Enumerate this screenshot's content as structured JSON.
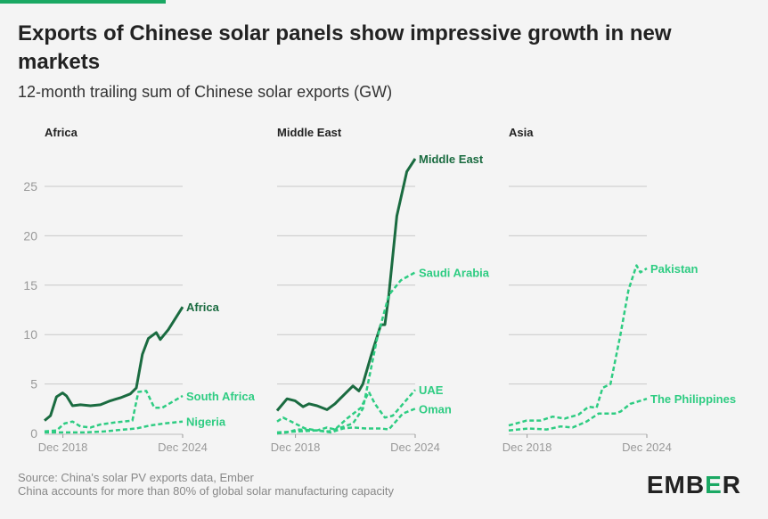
{
  "title": "Exports of Chinese solar panels show impressive growth in new markets",
  "subtitle": "12-month trailing sum of Chinese solar exports (GW)",
  "footer": {
    "source": "Source: China's solar PV exports data, Ember",
    "note": "China accounts for more than 80% of global solar manufacturing capacity"
  },
  "logo": {
    "pre": "EMB",
    "mid": "E",
    "post": "R"
  },
  "colors": {
    "dark": "#1a6b40",
    "light": "#2ecc82",
    "grid": "#c8c8c8",
    "axis": "#999999"
  },
  "chart_data": [
    {
      "type": "line",
      "title": "Africa",
      "ylim": [
        0,
        27.8
      ],
      "yticks": [
        0,
        5,
        10,
        15,
        20,
        25
      ],
      "xlim": [
        2018.0,
        2024.92
      ],
      "xticks": [
        {
          "x": 2018.92,
          "label": "Dec 2018"
        },
        {
          "x": 2024.92,
          "label": "Dec 2024"
        }
      ],
      "series": [
        {
          "name": "Africa",
          "style": "solid",
          "x": [
            2018.0,
            2018.3,
            2018.6,
            2018.9,
            2019.1,
            2019.4,
            2019.8,
            2020.3,
            2020.8,
            2021.3,
            2021.8,
            2022.3,
            2022.6,
            2022.9,
            2023.2,
            2023.6,
            2023.8,
            2024.2,
            2024.92
          ],
          "y": [
            1.3,
            1.8,
            3.7,
            4.1,
            3.8,
            2.8,
            2.9,
            2.8,
            2.9,
            3.3,
            3.6,
            4.0,
            4.6,
            8.0,
            9.6,
            10.2,
            9.5,
            10.5,
            12.8
          ]
        },
        {
          "name": "South Africa",
          "style": "dashed",
          "x": [
            2018.0,
            2018.6,
            2019.0,
            2019.4,
            2019.8,
            2020.3,
            2020.8,
            2021.5,
            2022.4,
            2022.7,
            2023.1,
            2023.5,
            2023.9,
            2024.92
          ],
          "y": [
            0.2,
            0.3,
            1.0,
            1.2,
            0.7,
            0.6,
            0.9,
            1.1,
            1.3,
            4.2,
            4.3,
            2.6,
            2.6,
            3.8
          ]
        },
        {
          "name": "Nigeria",
          "style": "dashed",
          "x": [
            2018.0,
            2019.0,
            2020.0,
            2021.0,
            2022.0,
            2022.6,
            2023.3,
            2024.0,
            2024.92
          ],
          "y": [
            0.1,
            0.1,
            0.1,
            0.2,
            0.4,
            0.5,
            0.8,
            1.0,
            1.2
          ]
        }
      ]
    },
    {
      "type": "line",
      "title": "Middle East",
      "ylim": [
        0,
        27.8
      ],
      "yticks": [
        0,
        5,
        10,
        15,
        20,
        25
      ],
      "xlim": [
        2018.0,
        2024.92
      ],
      "xticks": [
        {
          "x": 2018.92,
          "label": "Dec 2018"
        },
        {
          "x": 2024.92,
          "label": "Dec 2024"
        }
      ],
      "series": [
        {
          "name": "Middle East",
          "style": "solid",
          "x": [
            2018.0,
            2018.5,
            2018.9,
            2019.3,
            2019.6,
            2020.0,
            2020.5,
            2020.9,
            2021.3,
            2021.8,
            2022.1,
            2022.3,
            2022.7,
            2023.2,
            2023.4,
            2023.6,
            2024.0,
            2024.5,
            2024.92
          ],
          "y": [
            2.3,
            3.5,
            3.3,
            2.7,
            3.0,
            2.8,
            2.4,
            3.0,
            3.8,
            4.8,
            4.3,
            5.0,
            7.8,
            11.0,
            11.0,
            14.0,
            22.0,
            26.5,
            27.8
          ]
        },
        {
          "name": "Saudi Arabia",
          "style": "dashed",
          "x": [
            2018.0,
            2018.5,
            2019.0,
            2020.0,
            2020.6,
            2021.2,
            2021.8,
            2022.3,
            2023.0,
            2023.6,
            2024.2,
            2024.92
          ],
          "y": [
            0.0,
            0.1,
            0.4,
            0.3,
            0.2,
            0.6,
            1.0,
            2.5,
            9.5,
            14.0,
            15.5,
            16.3
          ]
        },
        {
          "name": "UAE",
          "style": "dashed",
          "x": [
            2018.0,
            2018.3,
            2018.9,
            2019.4,
            2020.0,
            2020.5,
            2020.9,
            2021.5,
            2022.2,
            2022.6,
            2022.9,
            2023.4,
            2023.8,
            2024.92
          ],
          "y": [
            1.2,
            1.6,
            1.0,
            0.5,
            0.3,
            0.6,
            0.4,
            1.5,
            2.6,
            4.2,
            3.0,
            1.6,
            1.8,
            4.4
          ]
        },
        {
          "name": "Oman",
          "style": "dashed",
          "x": [
            2018.0,
            2019.0,
            2020.0,
            2020.7,
            2021.3,
            2021.8,
            2022.5,
            2023.2,
            2023.6,
            2024.3,
            2024.92
          ],
          "y": [
            0.1,
            0.2,
            0.3,
            0.1,
            0.5,
            0.6,
            0.5,
            0.5,
            0.4,
            2.0,
            2.5
          ]
        }
      ]
    },
    {
      "type": "line",
      "title": "Asia",
      "ylim": [
        0,
        27.8
      ],
      "yticks": [
        0,
        5,
        10,
        15,
        20,
        25
      ],
      "xlim": [
        2018.0,
        2024.92
      ],
      "xticks": [
        {
          "x": 2018.92,
          "label": "Dec 2018"
        },
        {
          "x": 2024.92,
          "label": "Dec 2024"
        }
      ],
      "series": [
        {
          "name": "Pakistan",
          "style": "dashed",
          "x": [
            2018.0,
            2018.9,
            2019.6,
            2020.2,
            2020.8,
            2021.5,
            2022.0,
            2022.4,
            2022.7,
            2023.1,
            2023.6,
            2024.0,
            2024.4,
            2024.6,
            2024.92
          ],
          "y": [
            0.8,
            1.3,
            1.3,
            1.7,
            1.5,
            1.9,
            2.7,
            2.6,
            4.6,
            5.0,
            10.0,
            14.5,
            17.0,
            16.3,
            16.7
          ]
        },
        {
          "name": "The Philippines",
          "style": "dashed",
          "x": [
            2018.0,
            2019.0,
            2019.9,
            2020.6,
            2021.2,
            2021.9,
            2022.5,
            2023.3,
            2023.6,
            2024.1,
            2024.92
          ],
          "y": [
            0.3,
            0.5,
            0.4,
            0.7,
            0.6,
            1.2,
            2.0,
            2.0,
            2.2,
            3.0,
            3.5
          ]
        }
      ]
    }
  ]
}
